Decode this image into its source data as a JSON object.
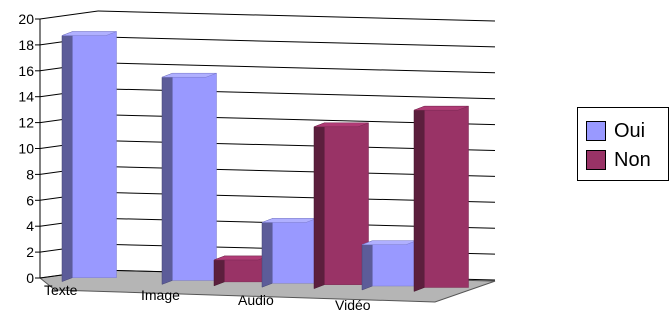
{
  "chart_data": {
    "type": "bar",
    "categories": [
      "Texte",
      "Image",
      "Audio",
      "Vidéo"
    ],
    "series": [
      {
        "name": "Oui",
        "values": [
          19,
          16,
          5,
          3.5
        ]
      },
      {
        "name": "Non",
        "values": [
          0,
          2,
          12.5,
          14
        ]
      }
    ],
    "ylim": [
      0,
      20
    ],
    "yticks": [
      "0",
      "2",
      "4",
      "6",
      "8",
      "10",
      "12",
      "14",
      "16",
      "18",
      "20"
    ],
    "grid": true,
    "legend_position": "right",
    "colors": {
      "Oui": "#9999ff",
      "Non": "#993366"
    }
  }
}
